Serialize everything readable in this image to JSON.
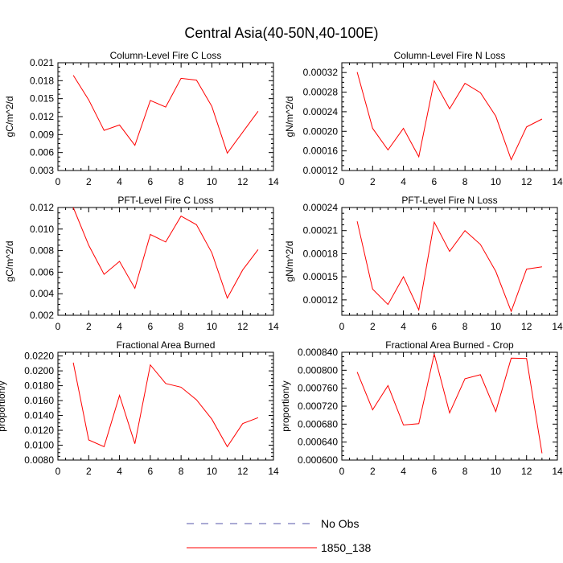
{
  "main_title": "Central Asia(40-50N,40-100E)",
  "legend": [
    {
      "label": "No Obs",
      "color": "#5555aa",
      "dash": true
    },
    {
      "label": "1850_138",
      "color": "#ff0000",
      "dash": false
    }
  ],
  "chart_data": [
    {
      "type": "line",
      "title": "Column-Level Fire C Loss",
      "ylabel": "gC/m^2/d",
      "xlim": [
        0,
        14
      ],
      "ylim": [
        0.003,
        0.021
      ],
      "x_ticks": [
        "0",
        "2",
        "4",
        "6",
        "8",
        "10",
        "12",
        "14"
      ],
      "y_ticks": [
        "0.003",
        "0.006",
        "0.009",
        "0.012",
        "0.015",
        "0.018",
        "0.021"
      ],
      "series": [
        {
          "name": "1850_138",
          "color": "#ff0000",
          "x": [
            1,
            2,
            3,
            4,
            5,
            6,
            7,
            8,
            9,
            10,
            11,
            12,
            13
          ],
          "values": [
            0.0189,
            0.0148,
            0.0097,
            0.0106,
            0.0072,
            0.0147,
            0.0136,
            0.0184,
            0.0181,
            0.0137,
            0.0059,
            0.0094,
            0.0129
          ]
        }
      ]
    },
    {
      "type": "line",
      "title": "Column-Level Fire N Loss",
      "ylabel": "gN/m^2/d",
      "xlim": [
        0,
        14
      ],
      "ylim": [
        0.00012,
        0.00034
      ],
      "x_ticks": [
        "0",
        "2",
        "4",
        "6",
        "8",
        "10",
        "12",
        "14"
      ],
      "y_ticks": [
        "0.00012",
        "0.00016",
        "0.00020",
        "0.00024",
        "0.00028",
        "0.00032"
      ],
      "series": [
        {
          "name": "1850_138",
          "color": "#ff0000",
          "x": [
            1,
            2,
            3,
            4,
            5,
            6,
            7,
            8,
            9,
            10,
            11,
            12,
            13
          ],
          "values": [
            0.000321,
            0.000206,
            0.000162,
            0.000206,
            0.000148,
            0.000303,
            0.000246,
            0.000298,
            0.000279,
            0.000231,
            0.000142,
            0.000209,
            0.000225
          ]
        }
      ]
    },
    {
      "type": "line",
      "title": "PFT-Level Fire C Loss",
      "ylabel": "gC/m^2/d",
      "xlim": [
        0,
        14
      ],
      "ylim": [
        0.002,
        0.012
      ],
      "x_ticks": [
        "0",
        "2",
        "4",
        "6",
        "8",
        "10",
        "12",
        "14"
      ],
      "y_ticks": [
        "0.002",
        "0.004",
        "0.006",
        "0.008",
        "0.010",
        "0.012"
      ],
      "series": [
        {
          "name": "1850_138",
          "color": "#ff0000",
          "x": [
            1,
            2,
            3,
            4,
            5,
            6,
            7,
            8,
            9,
            10,
            11,
            12,
            13
          ],
          "values": [
            0.012,
            0.0085,
            0.0058,
            0.007,
            0.0045,
            0.0095,
            0.0088,
            0.0112,
            0.0104,
            0.0078,
            0.0036,
            0.0062,
            0.0081
          ]
        }
      ]
    },
    {
      "type": "line",
      "title": "PFT-Level Fire N Loss",
      "ylabel": "gN/m^2/d",
      "xlim": [
        0,
        14
      ],
      "ylim": [
        0.0001,
        0.00024
      ],
      "x_ticks": [
        "0",
        "2",
        "4",
        "6",
        "8",
        "10",
        "12",
        "14"
      ],
      "y_ticks": [
        "0.00012",
        "0.00015",
        "0.00018",
        "0.00021",
        "0.00024"
      ],
      "series": [
        {
          "name": "1850_138",
          "color": "#ff0000",
          "x": [
            1,
            2,
            3,
            4,
            5,
            6,
            7,
            8,
            9,
            10,
            11,
            12,
            13
          ],
          "values": [
            0.000222,
            0.000134,
            0.000114,
            0.00015,
            0.000107,
            0.000221,
            0.000183,
            0.00021,
            0.000192,
            0.000157,
            0.000105,
            0.00016,
            0.000163
          ]
        }
      ]
    },
    {
      "type": "line",
      "title": "Fractional Area Burned",
      "ylabel": "proportion/y",
      "xlim": [
        0,
        14
      ],
      "ylim": [
        0.008,
        0.0225
      ],
      "x_ticks": [
        "0",
        "2",
        "4",
        "6",
        "8",
        "10",
        "12",
        "14"
      ],
      "y_ticks": [
        "0.0080",
        "0.0100",
        "0.0120",
        "0.0140",
        "0.0160",
        "0.0180",
        "0.0200",
        "0.0220"
      ],
      "series": [
        {
          "name": "1850_138",
          "color": "#ff0000",
          "x": [
            1,
            2,
            3,
            4,
            5,
            6,
            7,
            8,
            9,
            10,
            11,
            12,
            13
          ],
          "values": [
            0.0211,
            0.0107,
            0.0098,
            0.0167,
            0.0102,
            0.0208,
            0.0183,
            0.0178,
            0.0161,
            0.0135,
            0.0098,
            0.0129,
            0.0137
          ]
        }
      ]
    },
    {
      "type": "line",
      "title": "Fractional Area Burned - Crop",
      "ylabel": "proportion/y",
      "xlim": [
        0,
        14
      ],
      "ylim": [
        0.0006,
        0.00084
      ],
      "x_ticks": [
        "0",
        "2",
        "4",
        "6",
        "8",
        "10",
        "12",
        "14"
      ],
      "y_ticks": [
        "0.000600",
        "0.000640",
        "0.000680",
        "0.000720",
        "0.000760",
        "0.000800",
        "0.000840"
      ],
      "series": [
        {
          "name": "1850_138",
          "color": "#ff0000",
          "x": [
            1,
            2,
            3,
            4,
            5,
            6,
            7,
            8,
            9,
            10,
            11,
            12,
            13
          ],
          "values": [
            0.000796,
            0.000712,
            0.000766,
            0.000678,
            0.000681,
            0.000836,
            0.000705,
            0.000781,
            0.00079,
            0.000708,
            0.000827,
            0.000826,
            0.000615
          ]
        }
      ]
    }
  ]
}
